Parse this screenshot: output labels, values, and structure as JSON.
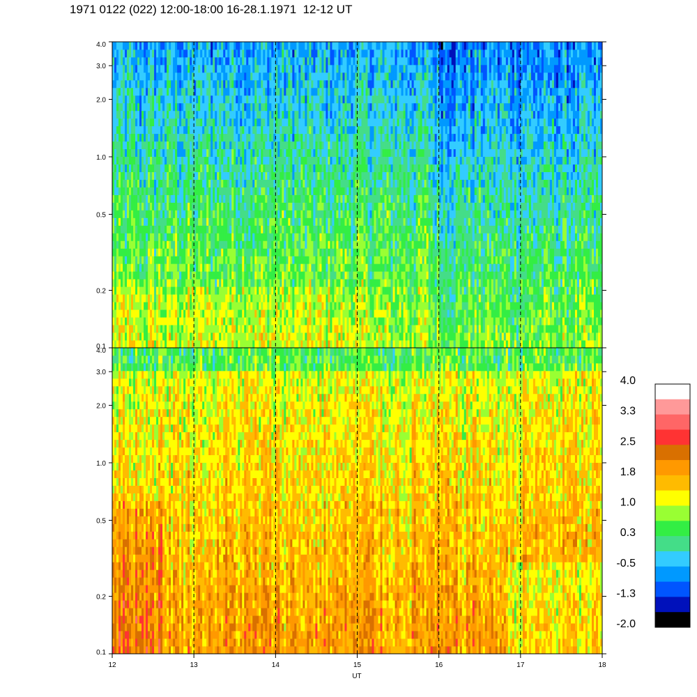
{
  "title": "1971 0122 (022) 12:00-18:00 16-28.1.1971  12-12 UT",
  "chart_data": {
    "type": "heatmap",
    "title": "1971 0122 (022) 12:00-18:00 16-28.1.1971  12-12 UT",
    "xlabel": "UT",
    "ylabel": "",
    "xlim": [
      12,
      18
    ],
    "x_ticks": [
      "12",
      "13",
      "14",
      "15",
      "16",
      "17",
      "18"
    ],
    "ylim": [
      0.1,
      4.0
    ],
    "y_scale": "log",
    "y_ticks": [
      {
        "value": 0.1,
        "label": "0.1"
      },
      {
        "value": 0.2,
        "label": "0.2"
      },
      {
        "value": 0.5,
        "label": "0.5"
      },
      {
        "value": 1.0,
        "label": "1.0"
      },
      {
        "value": 2.0,
        "label": "2.0"
      },
      {
        "value": 3.0,
        "label": "3.0"
      },
      {
        "value": 4.0,
        "label": "4.0"
      }
    ],
    "hour_markers": [
      13,
      14,
      15,
      16,
      17
    ],
    "panels": [
      {
        "name": "top",
        "dominant_range": [
          -1.0,
          1.2
        ],
        "note": "blue to green to yellow, bluer at higher frequencies"
      },
      {
        "name": "bottom",
        "dominant_range": [
          0.3,
          2.5
        ],
        "note": "yellow to orange, darker orange near 12 UT below 1.0"
      }
    ],
    "colorbar": {
      "labels": [
        "4.0",
        "3.3",
        "2.5",
        "1.8",
        "1.0",
        "0.3",
        "-0.5",
        "-1.3",
        "-2.0"
      ],
      "colors": [
        "#ffffff",
        "#ff9999",
        "#ff6666",
        "#ff3333",
        "#d97000",
        "#ff9900",
        "#ffbb00",
        "#ffff00",
        "#99ff33",
        "#33ee44",
        "#44dd88",
        "#33ccff",
        "#0099ff",
        "#0055ff",
        "#0011bb",
        "#000000"
      ]
    }
  }
}
